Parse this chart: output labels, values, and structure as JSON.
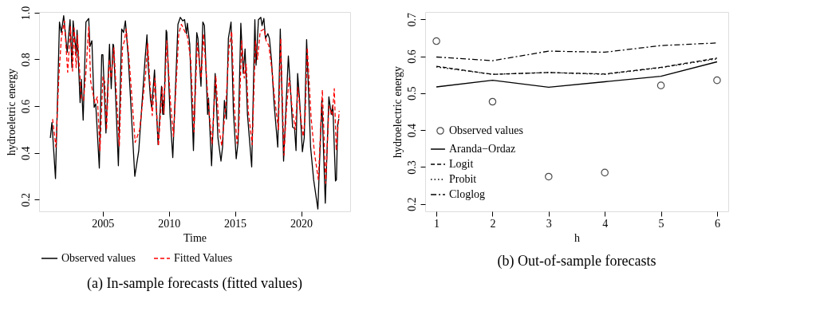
{
  "chart_data": [
    {
      "type": "line",
      "xlabel": "Time",
      "ylabel": "hydroeletric energy",
      "xlim": [
        2000.2,
        2023.7
      ],
      "ylim": [
        0.15,
        1.003
      ],
      "xticks": [
        2005,
        2010,
        2015,
        2020
      ],
      "yticks": [
        0.2,
        0.4,
        0.6,
        0.8,
        {
          "value": 1.0,
          "label": "1.0"
        }
      ],
      "grid": false,
      "legend": "bottom",
      "annotations": [
        "(a) In-sample forecasts (fitted values)"
      ],
      "series": [
        {
          "name": "Observed values",
          "color": "#000000",
          "line_style": "solid",
          "marker": "none",
          "x": [
            2001.05,
            2001.17,
            2001.44,
            2001.74,
            2001.88,
            2002.06,
            2002.32,
            2002.54,
            2002.68,
            2002.77,
            2003.0,
            2003.07,
            2003.3,
            2003.39,
            2003.53,
            2003.74,
            2003.95,
            2004.04,
            2004.19,
            2004.36,
            2004.48,
            2004.75,
            2004.93,
            2005.02,
            2005.25,
            2005.52,
            2005.65,
            2005.78,
            2005.83,
            2006.19,
            2006.44,
            2006.58,
            2006.72,
            2006.93,
            2007.43,
            2007.73,
            2008.21,
            2008.35,
            2008.44,
            2008.62,
            2008.71,
            2008.92,
            2009.19,
            2009.45,
            2009.54,
            2009.6,
            2009.63,
            2009.8,
            2009.85,
            2010.09,
            2010.3,
            2010.69,
            2010.87,
            2011.05,
            2011.19,
            2011.33,
            2011.4,
            2011.58,
            2011.86,
            2012.11,
            2012.2,
            2012.43,
            2012.57,
            2012.69,
            2012.93,
            2013.0,
            2013.05,
            2013.23,
            2013.5,
            2013.71,
            2013.94,
            2014.06,
            2014.2,
            2014.35,
            2014.5,
            2014.7,
            2014.88,
            2015.09,
            2015.23,
            2015.44,
            2015.62,
            2015.76,
            2015.94,
            2016.26,
            2016.5,
            2016.59,
            2016.77,
            2016.95,
            2017.04,
            2017.18,
            2017.3,
            2017.48,
            2017.6,
            2017.75,
            2017.96,
            2018.23,
            2018.42,
            2018.67,
            2018.85,
            2019.03,
            2019.2,
            2019.35,
            2019.5,
            2019.61,
            2019.73,
            2019.88,
            2020.09,
            2020.23,
            2020.41,
            2020.71,
            2020.94,
            2021.26,
            2021.56,
            2021.82,
            2022.09,
            2022.27,
            2022.39,
            2022.59,
            2022.66,
            2022.76,
            2022.85
          ],
          "values": [
            0.464,
            0.53,
            0.29,
            0.96,
            0.915,
            0.987,
            0.83,
            0.97,
            0.765,
            0.965,
            0.825,
            0.925,
            0.615,
            0.715,
            0.54,
            0.96,
            0.975,
            0.855,
            0.88,
            0.595,
            0.61,
            0.335,
            0.82,
            0.82,
            0.485,
            0.865,
            0.675,
            0.865,
            0.86,
            0.345,
            0.93,
            0.915,
            0.965,
            0.815,
            0.3,
            0.41,
            0.805,
            0.905,
            0.775,
            0.625,
            0.595,
            0.755,
            0.435,
            0.685,
            0.565,
            0.625,
            0.565,
            0.925,
            0.915,
            0.565,
            0.38,
            0.95,
            0.98,
            0.965,
            0.97,
            0.91,
            0.955,
            0.865,
            0.41,
            0.915,
            0.89,
            0.685,
            0.96,
            0.945,
            0.565,
            0.635,
            0.565,
            0.345,
            0.74,
            0.465,
            0.365,
            0.425,
            0.625,
            0.545,
            0.89,
            0.96,
            0.575,
            0.375,
            0.445,
            0.955,
            0.74,
            0.845,
            0.565,
            0.34,
            0.97,
            0.775,
            0.97,
            0.98,
            0.945,
            0.975,
            0.89,
            0.91,
            0.89,
            0.8,
            0.605,
            0.425,
            0.93,
            0.365,
            0.595,
            0.815,
            0.665,
            0.51,
            0.505,
            0.41,
            0.74,
            0.625,
            0.405,
            0.465,
            0.885,
            0.425,
            0.285,
            0.16,
            0.625,
            0.185,
            0.64,
            0.565,
            0.605,
            0.28,
            0.285,
            0.525,
            0.545
          ]
        },
        {
          "name": "Fitted Values",
          "color": "#ff0000",
          "line_style": "dashed",
          "marker": "none",
          "x": [
            2001.22,
            2001.47,
            2001.7,
            2001.88,
            2002.11,
            2002.36,
            2002.57,
            2002.73,
            2002.84,
            2003.0,
            2003.09,
            2003.39,
            2003.56,
            2003.74,
            2003.95,
            2004.1,
            2004.41,
            2004.6,
            2004.8,
            2005.02,
            2005.16,
            2005.3,
            2005.5,
            2005.65,
            2005.85,
            2006.26,
            2006.5,
            2006.65,
            2006.78,
            2007.0,
            2007.46,
            2007.8,
            2008.25,
            2008.4,
            2008.55,
            2008.75,
            2008.95,
            2009.22,
            2009.5,
            2009.62,
            2009.85,
            2010.12,
            2010.35,
            2010.75,
            2010.95,
            2011.2,
            2011.4,
            2011.65,
            2011.9,
            2012.15,
            2012.45,
            2012.62,
            2013.0,
            2013.27,
            2013.55,
            2013.8,
            2014.0,
            2014.3,
            2014.55,
            2014.75,
            2014.95,
            2015.15,
            2015.3,
            2015.5,
            2015.7,
            2015.85,
            2016.0,
            2016.3,
            2016.55,
            2016.7,
            2016.9,
            2017.2,
            2017.35,
            2017.55,
            2017.8,
            2018.0,
            2018.28,
            2018.45,
            2018.7,
            2018.9,
            2019.1,
            2019.3,
            2019.55,
            2019.75,
            2019.95,
            2020.15,
            2020.3,
            2020.46,
            2020.75,
            2021.0,
            2021.3,
            2021.6,
            2021.85,
            2022.1,
            2022.35,
            2022.5,
            2022.65,
            2022.87
          ],
          "values": [
            0.545,
            0.425,
            0.735,
            0.89,
            0.965,
            0.745,
            0.94,
            0.75,
            0.935,
            0.765,
            0.905,
            0.635,
            0.625,
            0.745,
            0.94,
            0.705,
            0.615,
            0.64,
            0.41,
            0.725,
            0.705,
            0.5,
            0.8,
            0.72,
            0.85,
            0.43,
            0.85,
            0.88,
            0.93,
            0.8,
            0.445,
            0.5,
            0.74,
            0.87,
            0.72,
            0.56,
            0.72,
            0.43,
            0.68,
            0.57,
            0.88,
            0.62,
            0.47,
            0.91,
            0.95,
            0.92,
            0.9,
            0.8,
            0.49,
            0.87,
            0.72,
            0.91,
            0.6,
            0.44,
            0.73,
            0.5,
            0.43,
            0.6,
            0.85,
            0.92,
            0.6,
            0.44,
            0.52,
            0.88,
            0.72,
            0.78,
            0.58,
            0.435,
            0.88,
            0.8,
            0.92,
            0.93,
            0.88,
            0.86,
            0.75,
            0.63,
            0.5,
            0.89,
            0.39,
            0.6,
            0.72,
            0.6,
            0.5,
            0.68,
            0.56,
            0.47,
            0.55,
            0.85,
            0.55,
            0.4,
            0.285,
            0.67,
            0.27,
            0.6,
            0.56,
            0.675,
            0.41,
            0.58
          ]
        }
      ]
    },
    {
      "type": "line",
      "xlabel": "h",
      "ylabel": "hydroelectric energy",
      "xlim": [
        0.8,
        6.2
      ],
      "ylim": [
        0.18,
        0.72
      ],
      "xticks": [
        1,
        2,
        3,
        4,
        5,
        6
      ],
      "yticks": [
        0.2,
        0.3,
        0.4,
        0.5,
        0.6,
        0.7
      ],
      "grid": false,
      "legend": "bottom left",
      "annotations": [
        "(b) Out-of-sample forecasts"
      ],
      "series": [
        {
          "name": "Observed values",
          "type": "scatter",
          "marker": "circle",
          "color": "#000000",
          "x": [
            1,
            2,
            3,
            4,
            5,
            6
          ],
          "values": [
            0.641,
            0.477,
            0.274,
            0.285,
            0.521,
            0.535
          ]
        },
        {
          "name": "Aranda−Ordaz",
          "color": "#000000",
          "line_style": "solid",
          "marker": "none",
          "x": [
            1,
            2,
            3,
            4,
            5,
            6
          ],
          "values": [
            0.517,
            0.535,
            0.516,
            0.531,
            0.546,
            0.585
          ]
        },
        {
          "name": "Logit",
          "color": "#000000",
          "line_style": "dashed",
          "marker": "none",
          "x": [
            1,
            2,
            3,
            4,
            5,
            6
          ],
          "values": [
            0.573,
            0.551,
            0.556,
            0.552,
            0.57,
            0.595
          ]
        },
        {
          "name": "Probit",
          "color": "#000000",
          "line_style": "dotted",
          "marker": "none",
          "x": [
            1,
            2,
            3,
            4,
            5,
            6
          ],
          "values": [
            0.571,
            0.551,
            0.556,
            0.551,
            0.569,
            0.593
          ]
        },
        {
          "name": "Cloglog",
          "color": "#000000",
          "line_style": "dashdot",
          "marker": "none",
          "x": [
            1,
            2,
            3,
            4,
            5,
            6
          ],
          "values": [
            0.598,
            0.588,
            0.614,
            0.611,
            0.629,
            0.636
          ]
        }
      ]
    }
  ]
}
